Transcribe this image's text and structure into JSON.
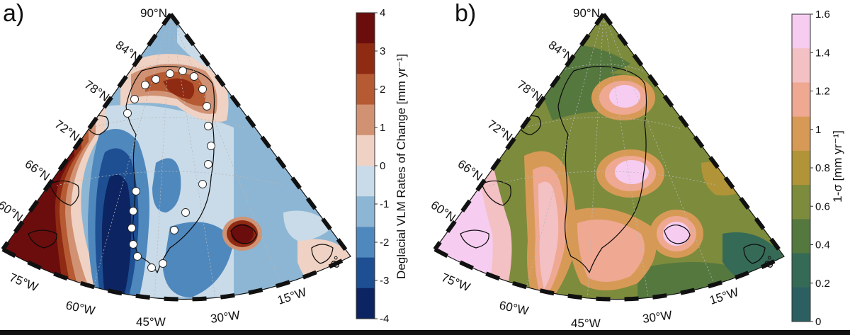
{
  "panels": [
    {
      "id": "a",
      "label": "a)",
      "colorbar": {
        "title": "Deglacial VLM Rates of Change [mm yr⁻¹]",
        "ticks": [
          "4",
          "3",
          "2",
          "1",
          "0",
          "-1",
          "-2",
          "-3",
          "-4"
        ],
        "colors": [
          "#6b0d0d",
          "#8f2a13",
          "#b55a32",
          "#d19274",
          "#efd2c3",
          "#c9dbe8",
          "#8db6d4",
          "#4f88bd",
          "#1d4f92",
          "#0c2461"
        ]
      },
      "lat_labels": [
        "90°N",
        "84°N",
        "78°N",
        "72°N",
        "66°N",
        "60°N"
      ],
      "lon_labels": [
        "75°W",
        "60°W",
        "45°W",
        "30°W",
        "15°W",
        "0°"
      ]
    },
    {
      "id": "b",
      "label": "b)",
      "colorbar": {
        "title": "1-σ [mm yr⁻¹]",
        "ticks": [
          "1.6",
          "1.4",
          "1.2",
          "1",
          "0.8",
          "0.6",
          "0.4",
          "0.2",
          "0"
        ],
        "colors": [
          "#f6cdf1",
          "#f3c0c4",
          "#efa892",
          "#d79a56",
          "#b09437",
          "#7d8b3c",
          "#55783f",
          "#356a57",
          "#2b5f62"
        ]
      },
      "lat_labels": [
        "90°N",
        "84°N",
        "78°N",
        "72°N",
        "66°N",
        "60°N"
      ],
      "lon_labels": [
        "75°W",
        "60°W",
        "45°W",
        "30°W",
        "15°W",
        "0°"
      ]
    }
  ]
}
